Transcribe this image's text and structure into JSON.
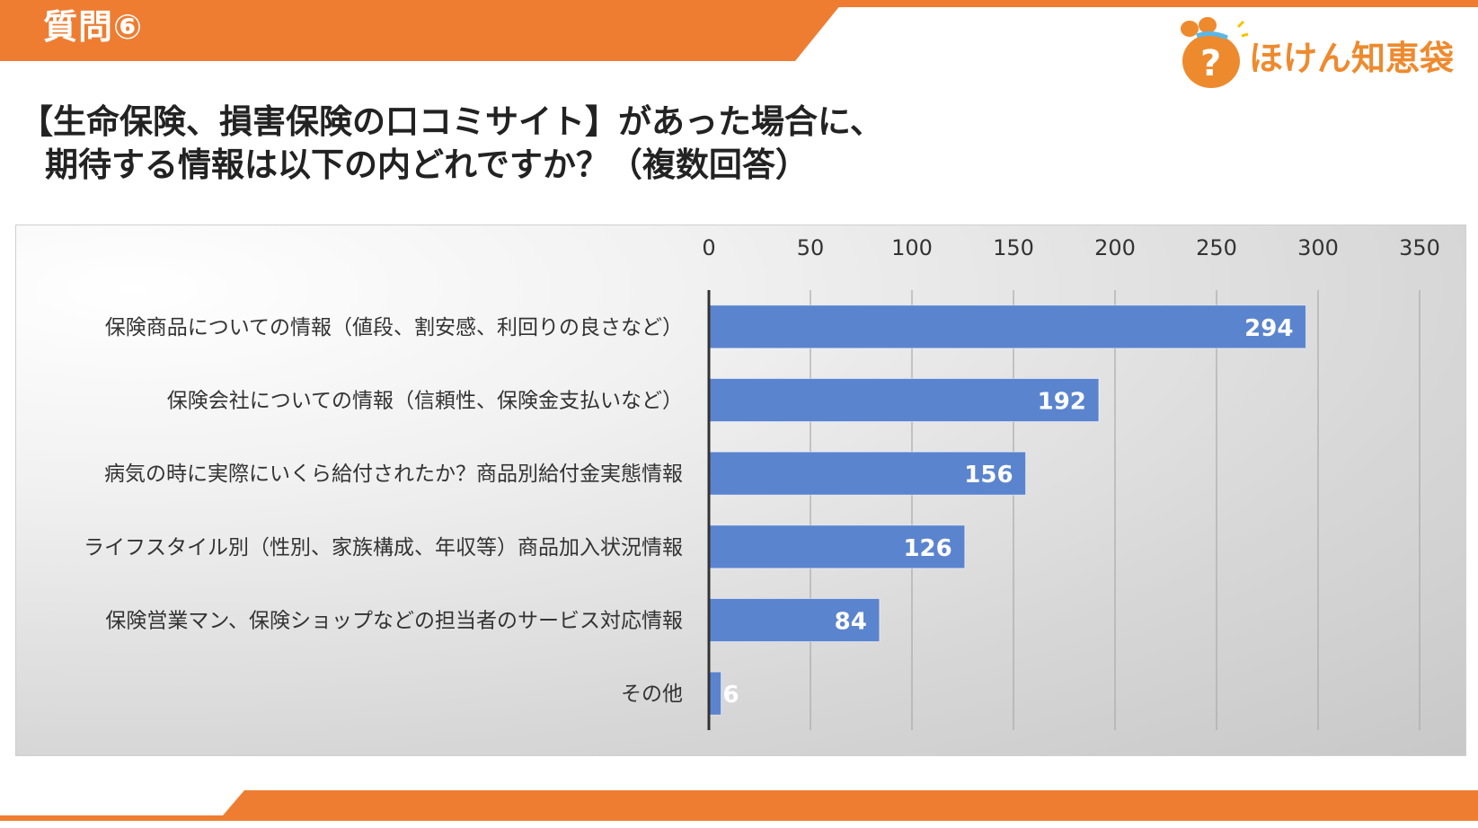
{
  "header": {
    "label": "質問⑥"
  },
  "logo": {
    "text": "ほけん知恵袋",
    "icon": "question-bag-icon"
  },
  "question": {
    "line1": "【生命保険、損害保険の口コミサイト】があった場合に、",
    "line2": "期待する情報は以下の内どれですか？（複数回答）"
  },
  "colors": {
    "accent": "#ee7d32",
    "bar": "#5b84ce",
    "label_text": "#ffffff",
    "axis": "#333333",
    "grid": "#aaaaaa"
  },
  "chart_data": {
    "type": "bar",
    "orientation": "horizontal",
    "categories": [
      "保険商品についての情報（値段、割安感、利回りの良さなど）",
      "保険会社についての情報（信頼性、保険金支払いなど）",
      "病気の時に実際にいくら給付されたか？商品別給付金実態情報",
      "ライフスタイル別（性別、家族構成、年収等）商品加入状況情報",
      "保険営業マン、保険ショップなどの担当者のサービス対応情報",
      "その他"
    ],
    "values": [
      294,
      192,
      156,
      126,
      84,
      6
    ],
    "xlim": [
      0,
      350
    ],
    "xticks": [
      "0",
      "50",
      "100",
      "150",
      "200",
      "250",
      "300",
      "350"
    ],
    "tick_position": "top",
    "grid": true,
    "data_labels": true,
    "title": "",
    "xlabel": "",
    "ylabel": ""
  }
}
